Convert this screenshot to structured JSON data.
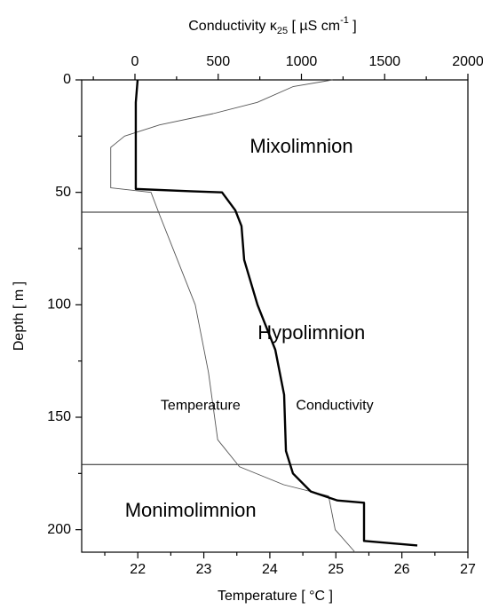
{
  "chart_data": {
    "type": "line",
    "x2label": {
      "text": "Conductivity κ",
      "sub": "25",
      "mid": " [ µS cm",
      "sup": "-1",
      "end": " ]"
    },
    "xlabel": "Temperature  [ °C ]",
    "ylabel": "Depth  [ m ]",
    "xlim": [
      21.15,
      27
    ],
    "xticks": [
      22,
      23,
      24,
      25,
      26,
      27
    ],
    "xticks_minor": [
      21.5,
      22.5,
      23.5,
      24.5,
      25.5,
      26.5
    ],
    "x2lim": [
      -320,
      2000
    ],
    "x2ticks": [
      0,
      500,
      1000,
      1500,
      2000
    ],
    "x2ticks_minor": [
      -250,
      250,
      750,
      1250,
      1750
    ],
    "ylim": [
      0,
      210
    ],
    "yticks": [
      0,
      50,
      100,
      150,
      200
    ],
    "yticks_minor": [
      25,
      75,
      125,
      175
    ],
    "y_inverted": true,
    "hlines": [
      58.8,
      171
    ],
    "annotations": [
      {
        "text": "Mixolimnion",
        "x": 1000,
        "y": 30,
        "axis": "x2"
      },
      {
        "text": "Hypolimnion",
        "x": 1060,
        "y": 113,
        "axis": "x2"
      },
      {
        "text": "Monimolimnion",
        "x": 22.8,
        "y": 192,
        "axis": "x"
      }
    ],
    "series": [
      {
        "name": "Temperature",
        "color": "#555555",
        "width": 0.9,
        "axis": "x",
        "label_pos": [
          22.95,
          145
        ],
        "values": [
          24.95,
          24.35,
          23.81,
          23.14,
          22.33,
          21.8,
          21.59,
          21.59,
          22.2,
          22.33,
          22.6,
          22.87,
          23.07,
          23.21,
          23.54,
          24.21,
          24.89,
          24.99,
          25.29
        ],
        "depth": [
          0,
          3,
          10,
          15,
          20,
          25,
          30,
          48,
          50,
          60,
          80,
          100,
          130,
          160,
          172,
          180,
          185,
          200,
          210
        ]
      },
      {
        "name": "Conductivity",
        "color": "#000000",
        "width": 2.4,
        "axis": "x2",
        "label_pos": [
          1200,
          145
        ],
        "values": [
          16,
          5,
          5,
          336,
          523,
          603,
          640,
          656,
          736,
          843,
          896,
          907,
          949,
          1056,
          1216,
          1376,
          1376,
          1696
        ],
        "depth": [
          0,
          10,
          48.5,
          49.5,
          50,
          58,
          65,
          80,
          100,
          120,
          140,
          165,
          175,
          183,
          187,
          188,
          205,
          207
        ]
      }
    ]
  }
}
